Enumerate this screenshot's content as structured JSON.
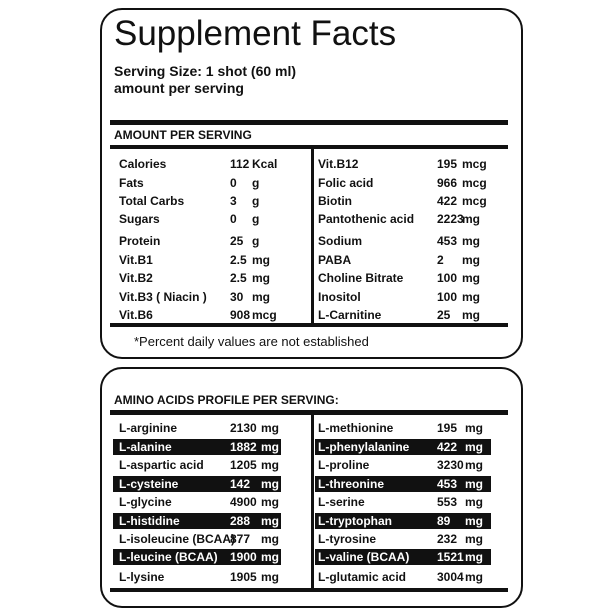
{
  "header": {
    "title": "Supplement Facts",
    "serving_size": "Serving Size: 1 shot (60 ml)",
    "subtitle": "amount per serving"
  },
  "nutrition": {
    "header": "AMOUNT PER SERVING",
    "left": [
      [
        "Calories",
        "112",
        "Kcal"
      ],
      [
        "Fats",
        "0",
        "g"
      ],
      [
        "Total Carbs",
        "3",
        "g"
      ],
      [
        "Sugars",
        "0",
        "g"
      ],
      [
        "Protein",
        "25",
        "g"
      ],
      [
        "Vit.B1",
        "2.5",
        "mg"
      ],
      [
        "Vit.B2",
        "2.5",
        "mg"
      ],
      [
        "Vit.B3 ( Niacin )",
        "30",
        "mg"
      ],
      [
        "Vit.B6",
        "908",
        "mcg"
      ]
    ],
    "right": [
      [
        "Vit.B12",
        "195",
        "mcg"
      ],
      [
        "Folic acid",
        "966",
        "mcg"
      ],
      [
        "Biotin",
        "422",
        "mcg"
      ],
      [
        "Pantothenic acid",
        "2223",
        "mg"
      ],
      [
        "Sodium",
        "453",
        "mg"
      ],
      [
        "PABA",
        "2",
        "mg"
      ],
      [
        "Choline Bitrate",
        "100",
        "mg"
      ],
      [
        "Inositol",
        "100",
        "mg"
      ],
      [
        "L-Carnitine",
        "25",
        "mg"
      ]
    ],
    "footnote": "*Percent daily values are not established"
  },
  "amino": {
    "header": "AMINO ACIDS PROFILE PER SERVING:",
    "left": [
      [
        "L-arginine",
        "2130",
        "mg"
      ],
      [
        "L-alanine",
        "1882",
        "mg"
      ],
      [
        "L-aspartic acid",
        "1205",
        "mg"
      ],
      [
        "L-cysteine",
        "142",
        "mg"
      ],
      [
        "L-glycine",
        "4900",
        "mg"
      ],
      [
        "L-histidine",
        "288",
        "mg"
      ],
      [
        "L-isoleucine (BCAA)",
        "877",
        "mg"
      ],
      [
        "L-leucine (BCAA)",
        "1900",
        "mg"
      ],
      [
        "L-lysine",
        "1905",
        "mg"
      ]
    ],
    "right": [
      [
        "L-methionine",
        "195",
        "mg"
      ],
      [
        "L-phenylalanine",
        "422",
        "mg"
      ],
      [
        "L-proline",
        "3230",
        "mg"
      ],
      [
        "L-threonine",
        "453",
        "mg"
      ],
      [
        "L-serine",
        "553",
        "mg"
      ],
      [
        "L-tryptophan",
        "89",
        "mg"
      ],
      [
        "L-tyrosine",
        "232",
        "mg"
      ],
      [
        "L-valine (BCAA)",
        "1521",
        "mg"
      ],
      [
        "L-glutamic acid",
        "3004",
        "mg"
      ]
    ]
  }
}
